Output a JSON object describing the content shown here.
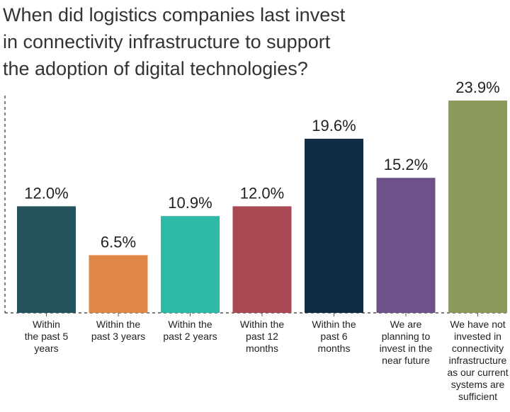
{
  "chart_data": {
    "type": "bar",
    "title_lines": [
      "When did logistics companies last invest",
      "in connectivity infrastructure to support",
      "the adoption of digital technologies?"
    ],
    "categories": [
      "Within the past 5 years",
      "Within the past 3 years",
      "Within the past 2 years",
      "Within the past 12 months",
      "Within the past 6 months",
      "We are planning to invest in the near future",
      "We have not invested in connectivity infrastructure as our current systems are sufficient"
    ],
    "category_lines": [
      [
        "Within",
        "the past 5",
        "years"
      ],
      [
        "Within the",
        "past 3 years"
      ],
      [
        "Within the",
        "past 2 years"
      ],
      [
        "Within the",
        "past 12",
        "months"
      ],
      [
        "Within the",
        "past 6",
        "months"
      ],
      [
        "We are",
        "planning to",
        "invest in the",
        "near future"
      ],
      [
        "We have not",
        "invested in",
        "connectivity",
        "infrastructure",
        "as our current",
        "systems are",
        "sufficient"
      ]
    ],
    "values": [
      12.0,
      6.5,
      10.9,
      12.0,
      19.6,
      15.2,
      23.9
    ],
    "value_labels": [
      "12.0%",
      "6.5%",
      "10.9%",
      "12.0%",
      "19.6%",
      "15.2%",
      "23.9%"
    ],
    "colors": [
      "#24535e",
      "#e08745",
      "#2fbaa7",
      "#a94a55",
      "#112c45",
      "#6d5189",
      "#8a9a5b"
    ],
    "ylim": [
      0,
      25
    ],
    "grid": false,
    "legend": "none"
  }
}
